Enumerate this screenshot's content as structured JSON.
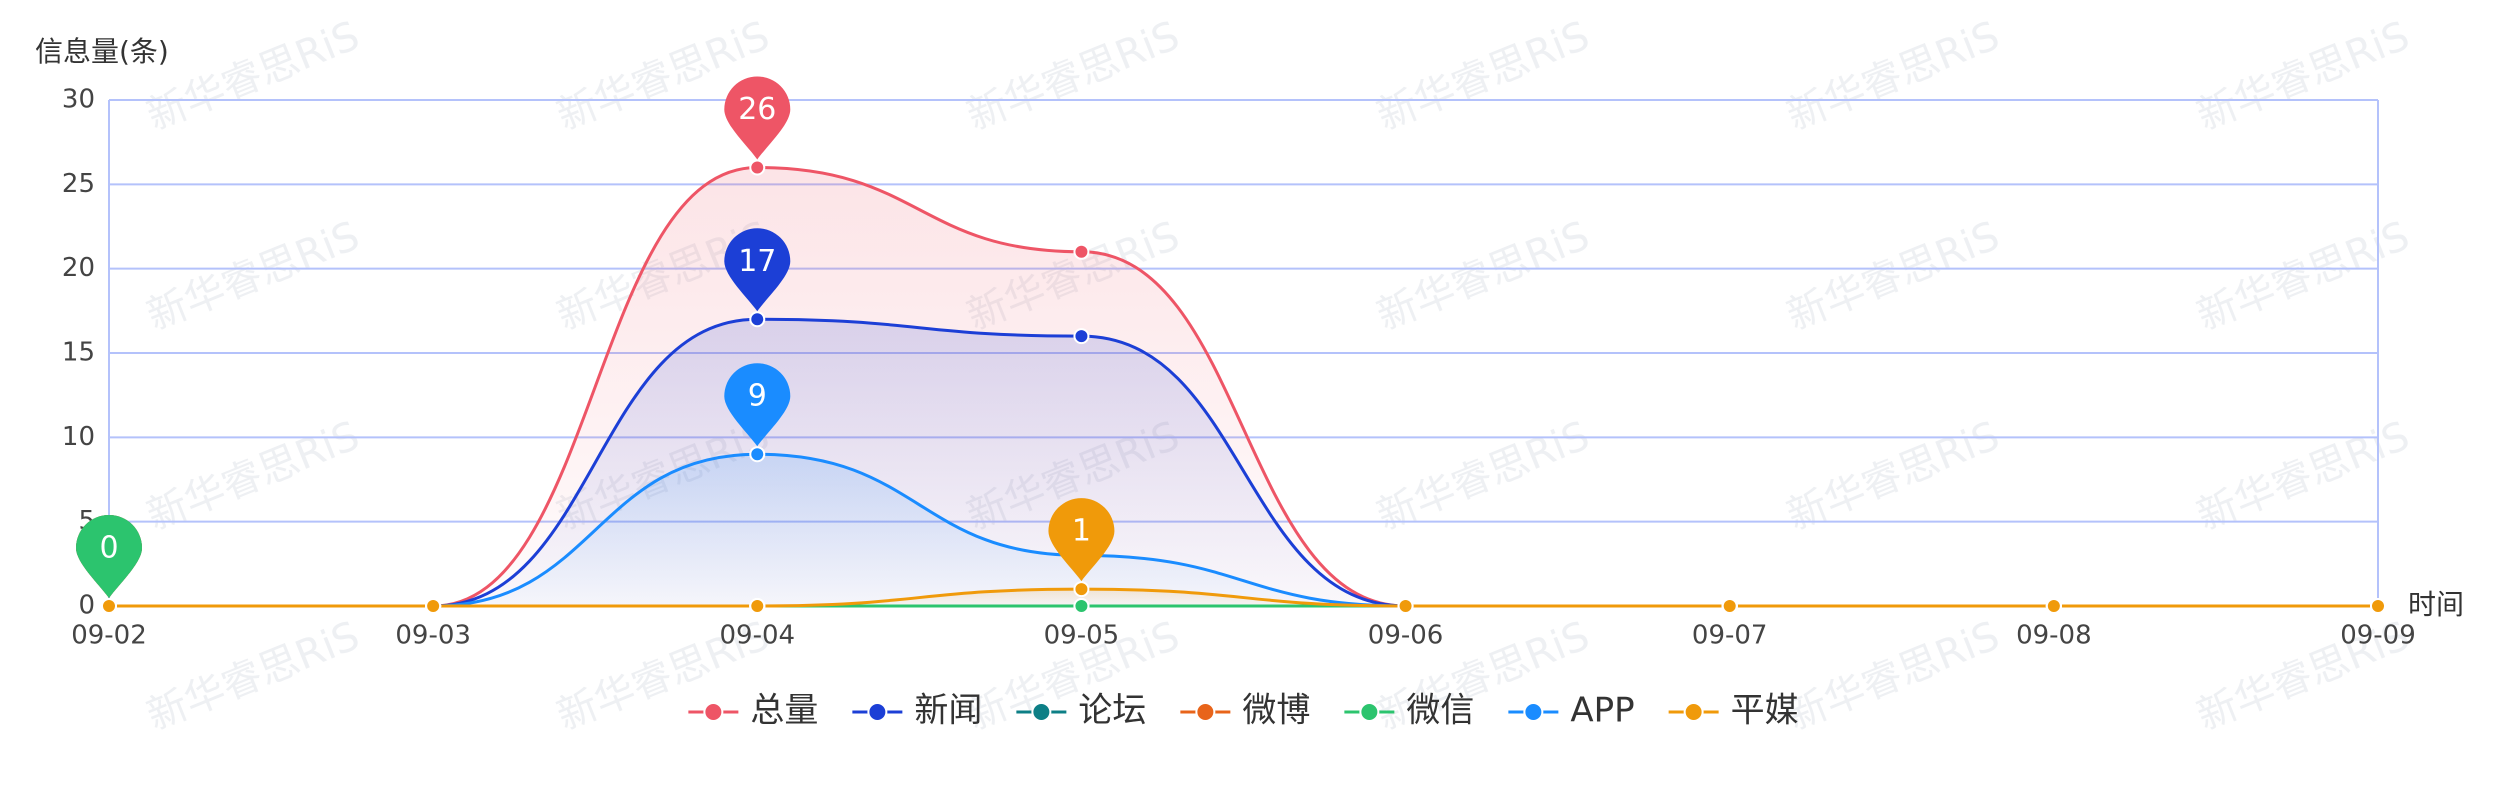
{
  "chart_data": {
    "type": "line",
    "watermark": "新华睿思RiS",
    "y_label": "信息量(条)",
    "x_label": "时间",
    "x": [
      "09-02",
      "09-03",
      "09-04",
      "09-05",
      "09-06",
      "09-07",
      "09-08",
      "09-09"
    ],
    "series": [
      {
        "name": "总量",
        "color": "#ee5566",
        "values": [
          0,
          0,
          26,
          21,
          0,
          0,
          0,
          0
        ]
      },
      {
        "name": "新闻",
        "color": "#1c3fd6",
        "values": [
          0,
          0,
          17,
          16,
          0,
          0,
          0,
          0
        ]
      },
      {
        "name": "论坛",
        "color": "#0d7f86",
        "values": [
          0,
          0,
          0,
          0,
          0,
          0,
          0,
          0
        ]
      },
      {
        "name": "微博",
        "color": "#e8641a",
        "values": [
          0,
          0,
          0,
          0,
          0,
          0,
          0,
          0
        ]
      },
      {
        "name": "微信",
        "color": "#2cc46e",
        "values": [
          0,
          0,
          0,
          0,
          0,
          0,
          0,
          0
        ]
      },
      {
        "name": "APP",
        "color": "#1a8cff",
        "values": [
          0,
          0,
          9,
          3,
          0,
          0,
          0,
          0
        ]
      },
      {
        "name": "平媒",
        "color": "#f09a0a",
        "values": [
          0,
          0,
          0,
          1,
          0,
          0,
          0,
          0
        ]
      }
    ],
    "ylim": [
      0,
      30
    ],
    "yticks": [
      0,
      5,
      10,
      15,
      20,
      25,
      30
    ],
    "grid": true,
    "smooth": true,
    "legend": "bottom"
  }
}
